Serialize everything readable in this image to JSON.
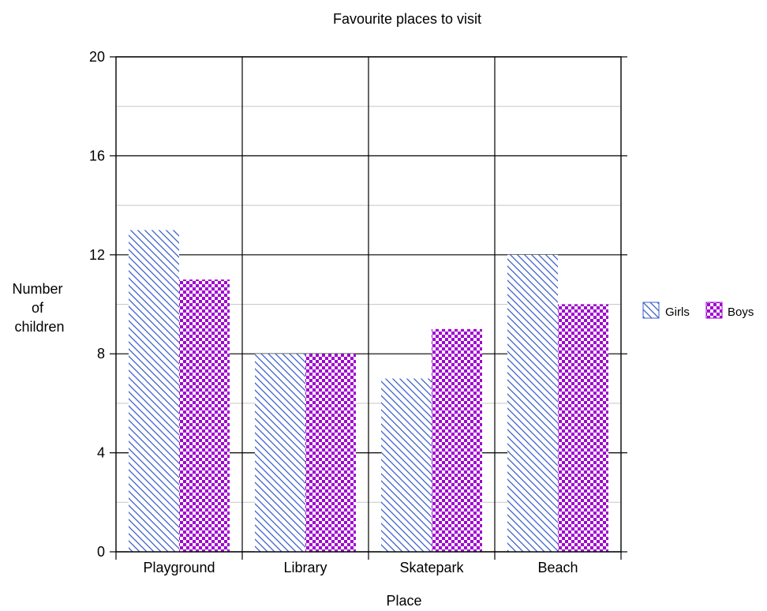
{
  "chart_data": {
    "type": "bar",
    "title": "Favourite places to visit",
    "xlabel": "Place",
    "ylabel": "Number of children",
    "ylabel_lines": [
      "Number",
      "of",
      "children"
    ],
    "categories": [
      "Playground",
      "Library",
      "Skatepark",
      "Beach"
    ],
    "series": [
      {
        "name": "Girls",
        "values": [
          13,
          8,
          7,
          12
        ],
        "color": "#3a5fcd",
        "pattern": "diagonal-hatch"
      },
      {
        "name": "Boys",
        "values": [
          11,
          8,
          9,
          10
        ],
        "color": "#a000d0",
        "pattern": "checkerboard"
      }
    ],
    "ylim": [
      0,
      20
    ],
    "yticks": [
      0,
      4,
      8,
      12,
      16,
      20
    ],
    "ytick_labels": [
      "0",
      "4",
      "8",
      "12",
      "16",
      "20"
    ],
    "minor_gridlines": [
      2,
      6,
      10,
      14,
      18
    ],
    "grid": true,
    "legend": "right"
  }
}
